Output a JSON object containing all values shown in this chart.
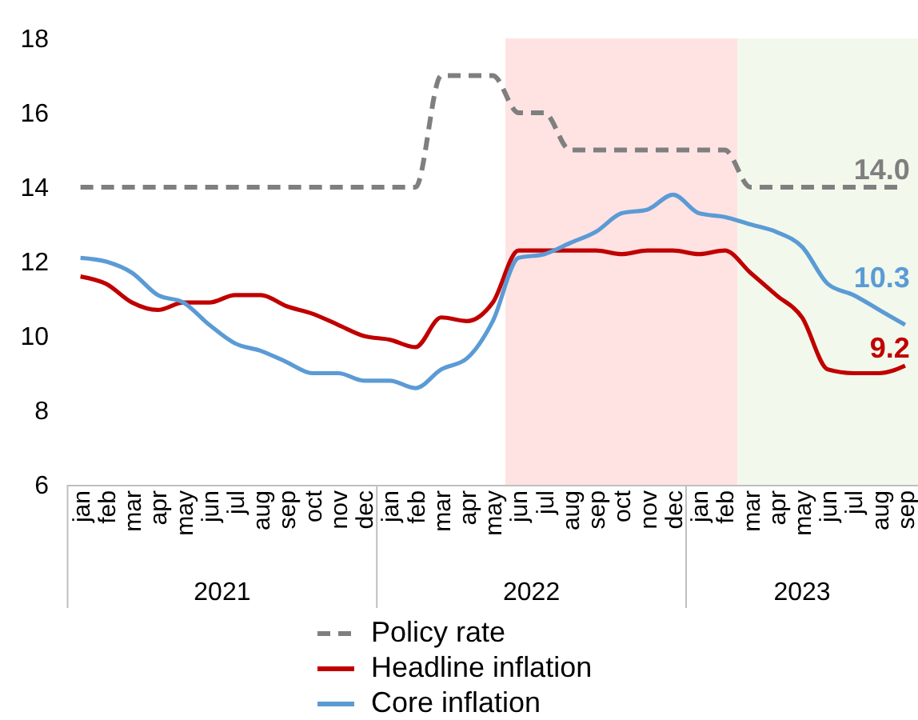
{
  "chart_data": {
    "type": "line",
    "x": [
      "2021-01",
      "2021-02",
      "2021-03",
      "2021-04",
      "2021-05",
      "2021-06",
      "2021-07",
      "2021-08",
      "2021-09",
      "2021-10",
      "2021-11",
      "2021-12",
      "2022-01",
      "2022-02",
      "2022-03",
      "2022-04",
      "2022-05",
      "2022-06",
      "2022-07",
      "2022-08",
      "2022-09",
      "2022-10",
      "2022-11",
      "2022-12",
      "2023-01",
      "2023-02",
      "2023-03",
      "2023-04",
      "2023-05",
      "2023-06",
      "2023-07",
      "2023-08",
      "2023-09"
    ],
    "xlim": [
      "2020-12-16",
      "2023-09-16"
    ],
    "xticks": [
      {
        "value": "2021-01",
        "label": "jan"
      },
      {
        "value": "2021-02",
        "label": "feb"
      },
      {
        "value": "2021-03",
        "label": "mar"
      },
      {
        "value": "2021-04",
        "label": "apr"
      },
      {
        "value": "2021-05",
        "label": "may"
      },
      {
        "value": "2021-06",
        "label": "jun"
      },
      {
        "value": "2021-07",
        "label": "jul"
      },
      {
        "value": "2021-08",
        "label": "aug"
      },
      {
        "value": "2021-09",
        "label": "sep"
      },
      {
        "value": "2021-10",
        "label": "oct"
      },
      {
        "value": "2021-11",
        "label": "nov"
      },
      {
        "value": "2021-12",
        "label": "dec"
      },
      {
        "value": "2022-01",
        "label": "jan"
      },
      {
        "value": "2022-02",
        "label": "feb"
      },
      {
        "value": "2022-03",
        "label": "mar"
      },
      {
        "value": "2022-04",
        "label": "apr"
      },
      {
        "value": "2022-05",
        "label": "may"
      },
      {
        "value": "2022-06",
        "label": "jun"
      },
      {
        "value": "2022-07",
        "label": "jul"
      },
      {
        "value": "2022-08",
        "label": "aug"
      },
      {
        "value": "2022-09",
        "label": "sep"
      },
      {
        "value": "2022-10",
        "label": "oct"
      },
      {
        "value": "2022-11",
        "label": "nov"
      },
      {
        "value": "2022-12",
        "label": "dec"
      },
      {
        "value": "2023-01",
        "label": "jan"
      },
      {
        "value": "2023-02",
        "label": "feb"
      },
      {
        "value": "2023-03",
        "label": "mar"
      },
      {
        "value": "2023-04",
        "label": "apr"
      },
      {
        "value": "2023-05",
        "label": "may"
      },
      {
        "value": "2023-06",
        "label": "jun"
      },
      {
        "value": "2023-07",
        "label": "jul"
      },
      {
        "value": "2023-08",
        "label": "aug"
      },
      {
        "value": "2023-09",
        "label": "sep"
      }
    ],
    "ylim": [
      6,
      18
    ],
    "yticks": [
      6,
      8,
      10,
      12,
      14,
      16,
      18
    ],
    "series": [
      {
        "name": "Policy rate",
        "color": "#7f7f7f",
        "line_style": "dashed",
        "values": [
          14,
          14,
          14,
          14,
          14,
          14,
          14,
          14,
          14,
          14,
          14,
          14,
          14,
          14,
          17,
          17,
          17,
          16,
          16,
          15,
          15,
          15,
          15,
          15,
          15,
          15,
          14,
          14,
          14,
          14,
          14,
          14,
          14
        ],
        "value_labels": [
          null,
          null,
          null,
          null,
          null,
          null,
          null,
          null,
          null,
          null,
          null,
          null,
          null,
          null,
          null,
          null,
          null,
          null,
          null,
          null,
          null,
          null,
          null,
          null,
          null,
          null,
          null,
          null,
          null,
          null,
          null,
          null,
          "14.0"
        ]
      },
      {
        "name": "Headline inflation",
        "color": "#c00000",
        "values": [
          11.6,
          11.4,
          10.9,
          10.7,
          10.9,
          10.9,
          11.1,
          11.1,
          10.8,
          10.6,
          10.3,
          10.0,
          9.9,
          9.7,
          10.5,
          10.4,
          10.9,
          12.3,
          12.3,
          12.3,
          12.3,
          12.2,
          12.3,
          12.3,
          12.2,
          12.3,
          11.7,
          11.1,
          10.5,
          9.1,
          9.0,
          9.0,
          9.2
        ],
        "value_labels": [
          null,
          null,
          null,
          null,
          null,
          null,
          null,
          null,
          null,
          null,
          null,
          null,
          null,
          null,
          null,
          null,
          null,
          null,
          null,
          null,
          null,
          null,
          null,
          null,
          null,
          null,
          null,
          null,
          null,
          null,
          null,
          null,
          "9.2"
        ]
      },
      {
        "name": "Core inflation",
        "color": "#5b9bd5",
        "values": [
          12.1,
          12.0,
          11.7,
          11.1,
          10.9,
          10.3,
          9.8,
          9.6,
          9.3,
          9.0,
          9.0,
          8.8,
          8.8,
          8.6,
          9.1,
          9.4,
          10.4,
          12.1,
          12.2,
          12.5,
          12.8,
          13.3,
          13.4,
          13.8,
          13.3,
          13.2,
          13.0,
          12.8,
          12.4,
          11.4,
          11.1,
          10.7,
          10.3
        ],
        "value_labels": [
          null,
          null,
          null,
          null,
          null,
          null,
          null,
          null,
          null,
          null,
          null,
          null,
          null,
          null,
          null,
          null,
          null,
          null,
          null,
          null,
          null,
          null,
          null,
          null,
          null,
          null,
          null,
          null,
          null,
          null,
          null,
          null,
          "10.3"
        ]
      }
    ],
    "bands": [
      {
        "axis": "x",
        "from": "2022-05-16",
        "to": "2023-02-15",
        "color": "#ffe3e3"
      },
      {
        "axis": "x",
        "from": "2023-02-15",
        "to": "2023-09-16",
        "color": "#f2f8ec"
      }
    ],
    "annotations": [
      "2021",
      "2022",
      "2023"
    ],
    "legend": "bottom"
  }
}
